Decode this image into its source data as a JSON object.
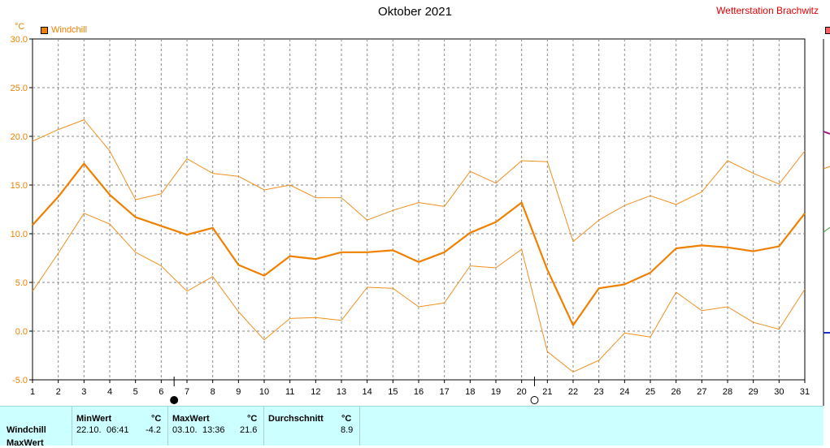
{
  "header": {
    "title": "Oktober 2021",
    "station": "Wetterstation Brachwitz",
    "unit": "°C"
  },
  "legend": {
    "label": "Windchill"
  },
  "colors": {
    "series": "#f08000",
    "series_light": "#f09020",
    "grid": "#808080",
    "station": "#e00000",
    "table_bg": "#ccffff"
  },
  "chart_data": {
    "type": "line",
    "title": "Oktober 2021",
    "ylabel": "°C",
    "ylim": [
      -5,
      30
    ],
    "yticks": [
      "30.0",
      "25.0",
      "20.0",
      "15.0",
      "10.0",
      "5.0",
      "0.0",
      "-5.0"
    ],
    "x": [
      1,
      2,
      3,
      4,
      5,
      6,
      7,
      8,
      9,
      10,
      11,
      12,
      13,
      14,
      15,
      16,
      17,
      18,
      19,
      20,
      21,
      22,
      23,
      24,
      25,
      26,
      27,
      28,
      29,
      30,
      31
    ],
    "xlabels": [
      "1",
      "2",
      "3",
      "4",
      "5",
      "6",
      "7",
      "8",
      "9",
      "10",
      "11",
      "12",
      "13",
      "14",
      "15",
      "16",
      "17",
      "18",
      "19",
      "20",
      "21",
      "22",
      "23",
      "24",
      "25",
      "26",
      "27",
      "28",
      "29",
      "30",
      "31"
    ],
    "grid": true,
    "legend": "top-left",
    "series": [
      {
        "name": "Windchill",
        "role": "mean",
        "values": [
          10.9,
          13.8,
          17.2,
          14.0,
          11.7,
          10.8,
          9.9,
          10.6,
          6.8,
          5.7,
          7.7,
          7.4,
          8.1,
          8.1,
          8.3,
          7.1,
          8.1,
          10.1,
          11.2,
          13.2,
          6.3,
          0.6,
          4.4,
          4.8,
          6.0,
          8.5,
          8.8,
          8.6,
          8.2,
          8.7,
          12.1
        ]
      },
      {
        "role": "max",
        "values": [
          19.5,
          20.7,
          21.7,
          18.5,
          13.5,
          14.1,
          17.7,
          16.2,
          15.9,
          14.5,
          15.0,
          13.7,
          13.7,
          11.4,
          12.4,
          13.2,
          12.8,
          16.4,
          15.2,
          17.5,
          17.4,
          9.2,
          11.4,
          12.9,
          13.9,
          13.0,
          14.3,
          17.5,
          16.2,
          15.1,
          18.5
        ]
      },
      {
        "role": "min",
        "values": [
          4.1,
          8.0,
          12.1,
          11.0,
          8.1,
          6.7,
          4.1,
          5.6,
          2.0,
          -0.9,
          1.3,
          1.4,
          1.1,
          4.5,
          4.4,
          2.5,
          2.9,
          6.7,
          6.5,
          8.4,
          -2.1,
          -4.2,
          -3.0,
          -0.2,
          -0.6,
          4.0,
          2.1,
          2.5,
          0.9,
          0.2,
          4.3
        ]
      }
    ],
    "markers": [
      {
        "type": "new-moon",
        "x": 6.5
      },
      {
        "type": "full-moon",
        "x": 20.5
      }
    ]
  },
  "table": {
    "row_label": "Windchill",
    "row_label_2": "MaxWert",
    "min": {
      "header": "MinWert",
      "unit": "°C",
      "date": "22.10.",
      "time": "06:41",
      "value": "-4.2"
    },
    "max": {
      "header": "MaxWert",
      "unit": "°C",
      "date": "03.10.",
      "time": "13:36",
      "value": "21.6"
    },
    "avg": {
      "header": "Durchschnitt",
      "unit": "°C",
      "value": "8.9"
    }
  }
}
